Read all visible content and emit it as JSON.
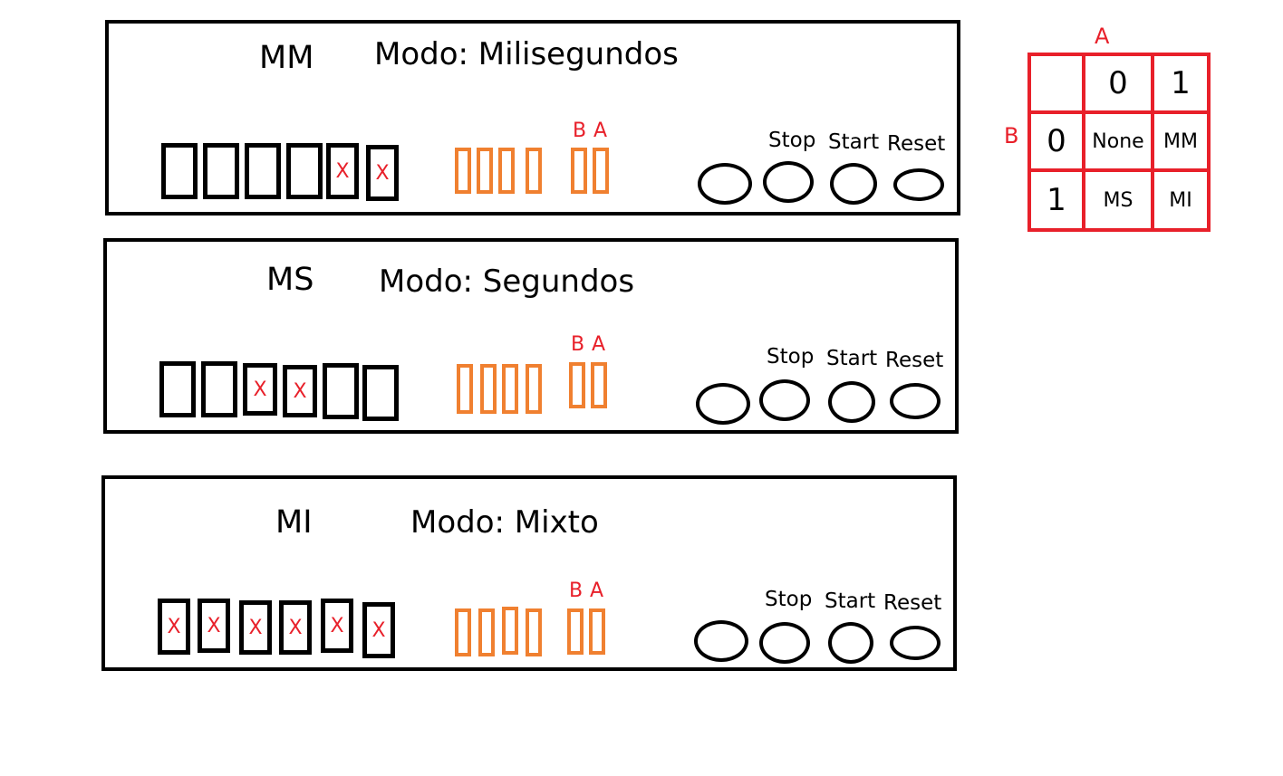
{
  "panels": [
    {
      "code": "MM",
      "mode": "Modo: Milisegundos",
      "digits": [
        "",
        "",
        "",
        "",
        "X",
        "X"
      ],
      "leds": {
        "b": "B",
        "a": "A"
      },
      "buttons": {
        "stop": "Stop",
        "start": "Start",
        "reset": "Reset"
      }
    },
    {
      "code": "MS",
      "mode": "Modo: Segundos",
      "digits": [
        "",
        "",
        "X",
        "X",
        "",
        ""
      ],
      "leds": {
        "b": "B",
        "a": "A"
      },
      "buttons": {
        "stop": "Stop",
        "start": "Start",
        "reset": "Reset"
      }
    },
    {
      "code": "MI",
      "mode": "Modo: Mixto",
      "digits": [
        "X",
        "X",
        "X",
        "X",
        "X",
        "X"
      ],
      "leds": {
        "b": "B",
        "a": "A"
      },
      "buttons": {
        "stop": "Stop",
        "start": "Start",
        "reset": "Reset"
      }
    }
  ],
  "truth_table": {
    "col_var": "A",
    "row_var": "B",
    "col_headers": [
      "0",
      "1"
    ],
    "row_headers": [
      "0",
      "1"
    ],
    "cells": [
      [
        "None",
        "MM"
      ],
      [
        "MS",
        "MI"
      ]
    ]
  },
  "colors": {
    "digit_border": "#000000",
    "led": "#f08030",
    "mark": "#e8202a",
    "table": "#e8202a"
  }
}
